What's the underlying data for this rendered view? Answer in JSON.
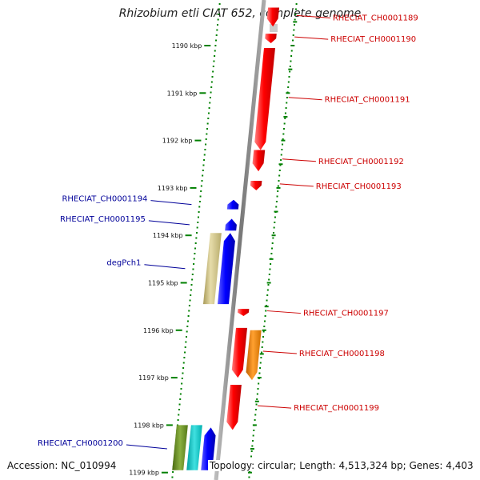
{
  "title": "Rhizobium etli CIAT 652, complete genome",
  "footer": {
    "accession": "Accession: NC_010994",
    "topology": "Topology: circular; Length: 4,513,324 bp; Genes: 4,403"
  },
  "colors": {
    "forward": "#ff0000",
    "reverse": "#0000ff",
    "forward_label": "#cc0000",
    "reverse_label": "#000099",
    "scale_ticks": "#008000",
    "backbone": "#888888",
    "khaki_feature": "#cfc48a",
    "orange_feature": "#ff8c00",
    "teal_feature": "#20b2aa",
    "olive_feature": "#6b8e23"
  },
  "chart_data": {
    "type": "genome-map",
    "units": "kbp",
    "scale_labels": [
      "1190 kbp",
      "1191 kbp",
      "1192 kbp",
      "1193 kbp",
      "1194 kbp",
      "1195 kbp",
      "1196 kbp",
      "1197 kbp",
      "1198 kbp",
      "1199 kbp"
    ],
    "genes": [
      {
        "name": "RHECIAT_CH0001189",
        "strand": "forward",
        "color": "#ff0000",
        "start_kbp": 1189.2,
        "end_kbp": 1189.6,
        "labeled": true
      },
      {
        "name": "RHECIAT_CH0001190",
        "strand": "forward",
        "color": "#ff0000",
        "start_kbp": 1189.75,
        "end_kbp": 1189.95,
        "labeled": true
      },
      {
        "name": "RHECIAT_CH0001191",
        "strand": "forward",
        "color": "#ff0000",
        "start_kbp": 1190.05,
        "end_kbp": 1192.2,
        "labeled": true
      },
      {
        "name": "RHECIAT_CH0001192",
        "strand": "forward",
        "color": "#ff0000",
        "start_kbp": 1192.2,
        "end_kbp": 1192.65,
        "labeled": true
      },
      {
        "name": "RHECIAT_CH0001193",
        "strand": "forward",
        "color": "#ff0000",
        "start_kbp": 1192.85,
        "end_kbp": 1193.05,
        "labeled": true
      },
      {
        "name": "RHECIAT_CH0001194",
        "strand": "reverse",
        "color": "#0000ff",
        "start_kbp": 1193.25,
        "end_kbp": 1193.45,
        "labeled": true
      },
      {
        "name": "RHECIAT_CH0001195",
        "strand": "reverse",
        "color": "#0000ff",
        "start_kbp": 1193.65,
        "end_kbp": 1193.9,
        "labeled": true
      },
      {
        "name": "degPch1",
        "strand": "reverse",
        "color": "#0000ff",
        "start_kbp": 1193.95,
        "end_kbp": 1195.45,
        "labeled": true
      },
      {
        "name": "",
        "strand": "reverse",
        "color": "#cfc48a",
        "start_kbp": 1193.95,
        "end_kbp": 1195.45,
        "labeled": false
      },
      {
        "name": "RHECIAT_CH0001197",
        "strand": "forward",
        "color": "#ff0000",
        "start_kbp": 1195.55,
        "end_kbp": 1195.7,
        "labeled": true
      },
      {
        "name": "RHECIAT_CH0001198",
        "strand": "forward",
        "color": "#ff0000",
        "start_kbp": 1195.95,
        "end_kbp": 1197.0,
        "labeled": true
      },
      {
        "name": "",
        "strand": "forward",
        "color": "#ff8c00",
        "start_kbp": 1196.0,
        "end_kbp": 1197.05,
        "labeled": false
      },
      {
        "name": "RHECIAT_CH0001199",
        "strand": "forward",
        "color": "#ff0000",
        "start_kbp": 1197.15,
        "end_kbp": 1198.1,
        "labeled": true
      },
      {
        "name": "RHECIAT_CH0001200",
        "strand": "reverse",
        "color": "#0000ff",
        "start_kbp": 1198.05,
        "end_kbp": 1198.95,
        "labeled": true
      },
      {
        "name": "",
        "strand": "reverse",
        "color": "#20b2aa",
        "start_kbp": 1198.0,
        "end_kbp": 1198.95,
        "labeled": false
      },
      {
        "name": "",
        "strand": "reverse",
        "color": "#6b8e23",
        "start_kbp": 1198.0,
        "end_kbp": 1198.95,
        "labeled": false
      }
    ]
  }
}
